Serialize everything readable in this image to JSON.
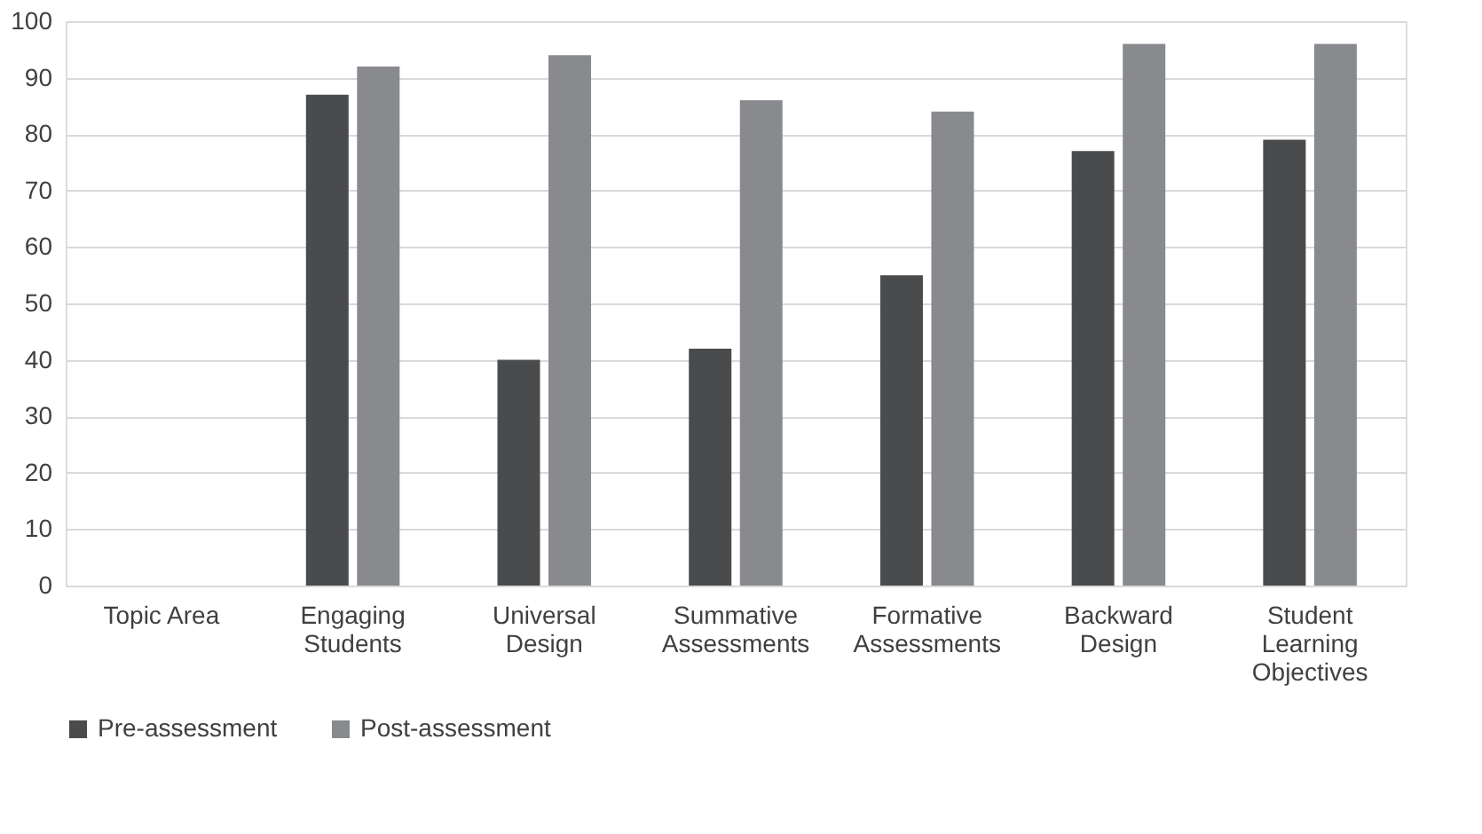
{
  "chart_data": {
    "type": "bar",
    "categories": [
      "Topic Area",
      "Engaging Students",
      "Universal Design",
      "Summative Assessments",
      "Formative Assessments",
      "Backward Design",
      "Student Learning Objectives"
    ],
    "series": [
      {
        "name": "Pre-assessment",
        "color": "#4a4b4d",
        "values": [
          null,
          87,
          40,
          42,
          55,
          77,
          79
        ]
      },
      {
        "name": "Post-assessment",
        "color": "#898a8e",
        "values": [
          null,
          92,
          94,
          86,
          84,
          96,
          96
        ]
      }
    ],
    "ylim": [
      0,
      100
    ],
    "yticks": [
      0,
      10,
      20,
      30,
      40,
      50,
      60,
      70,
      80,
      90,
      100
    ],
    "grid": "y",
    "legend": "bottom"
  }
}
